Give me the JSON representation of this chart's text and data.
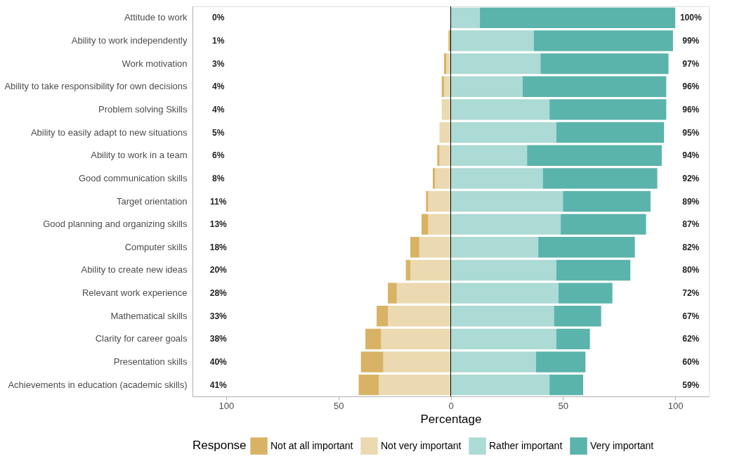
{
  "chart_data": {
    "type": "bar",
    "orientation": "horizontal",
    "stacked": true,
    "xlabel": "Percentage",
    "legend_title": "Response",
    "legend": "bottom",
    "categories": [
      "Attitude to work",
      "Ability to work independently",
      "Work motivation",
      "Ability to take responsibility for own decisions",
      "Problem solving Skills",
      "Ability to easily adapt to new situations",
      "Ability to work in a team",
      "Good communication skills",
      "Target orientation",
      "Good planning and organizing skills",
      "Computer skills",
      "Ability to create new ideas",
      "Relevant work experience",
      "Mathematical skills",
      "Clarity for career goals",
      "Presentation skills",
      "Achievements in education (academic skills)"
    ],
    "series": [
      {
        "name": "Not very important",
        "color": "#ebd9b1",
        "values": [
          0,
          0,
          -2,
          -3,
          -4,
          -5,
          -5,
          -7,
          -10,
          -10,
          -14,
          -18,
          -24,
          -28,
          -31,
          -30,
          -32
        ]
      },
      {
        "name": "Not at all important",
        "color": "#d9b365",
        "values": [
          0,
          -1,
          -1,
          -1,
          0,
          0,
          -1,
          -1,
          -1,
          -3,
          -4,
          -2,
          -4,
          -5,
          -7,
          -10,
          -9
        ]
      },
      {
        "name": "Rather important",
        "color": "#acdad5",
        "values": [
          13,
          37,
          40,
          32,
          44,
          47,
          34,
          41,
          50,
          49,
          39,
          47,
          48,
          46,
          47,
          38,
          44
        ]
      },
      {
        "name": "Very important",
        "color": "#5ab4ac",
        "values": [
          87,
          62,
          57,
          64,
          52,
          48,
          60,
          51,
          39,
          38,
          43,
          33,
          24,
          21,
          15,
          22,
          15
        ]
      }
    ],
    "totals": [
      [
        "0%",
        "100%"
      ],
      [
        "1%",
        "99%"
      ],
      [
        "3%",
        "97%"
      ],
      [
        "4%",
        "96%"
      ],
      [
        "4%",
        "96%"
      ],
      [
        "5%",
        "95%"
      ],
      [
        "6%",
        "94%"
      ],
      [
        "8%",
        "92%"
      ],
      [
        "11%",
        "89%"
      ],
      [
        "13%",
        "87%"
      ],
      [
        "18%",
        "82%"
      ],
      [
        "20%",
        "80%"
      ],
      [
        "28%",
        "72%"
      ],
      [
        "33%",
        "67%"
      ],
      [
        "38%",
        "62%"
      ],
      [
        "40%",
        "60%"
      ],
      [
        "41%",
        "59%"
      ]
    ],
    "xlim": [
      -115,
      115
    ],
    "xticks": [
      {
        "value": -100,
        "label": "100"
      },
      {
        "value": -50,
        "label": "50"
      },
      0,
      50,
      100
    ],
    "ref_lines": [
      {
        "axis": "x",
        "value": 0,
        "label": null,
        "color": "#000000"
      }
    ],
    "grid": false
  }
}
